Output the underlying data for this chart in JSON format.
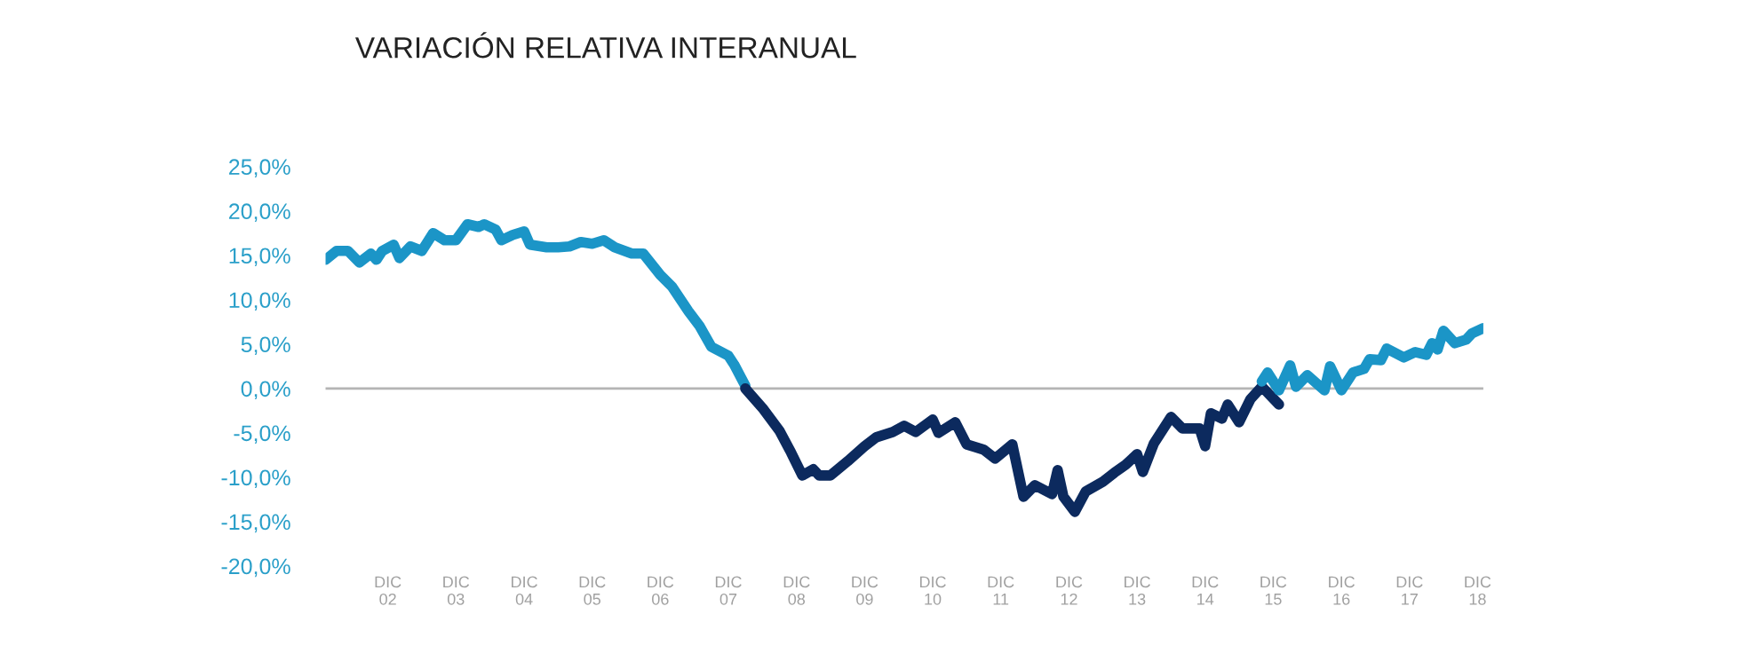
{
  "chart_data": {
    "type": "line",
    "title": "VARIACIÓN RELATIVA INTERANUAL",
    "series": [
      {
        "color": "#1b95c7",
        "x": [
          "2002-01",
          "2002-03",
          "2002-05",
          "2002-07",
          "2002-09",
          "2002-10",
          "2002-11",
          "2003-01",
          "2003-02",
          "2003-04",
          "2003-06",
          "2003-08",
          "2003-10",
          "2003-12",
          "2004-02",
          "2004-04",
          "2004-05",
          "2004-07",
          "2004-08",
          "2004-10",
          "2004-12",
          "2005-01",
          "2005-04",
          "2005-06",
          "2005-08",
          "2005-10",
          "2005-12",
          "2006-02",
          "2006-04",
          "2006-07",
          "2006-09",
          "2006-12",
          "2007-02",
          "2007-05",
          "2007-07",
          "2007-09",
          "2007-12",
          "2008-01",
          "2008-03"
        ],
        "values": [
          14.5,
          15.5,
          15.5,
          14.2,
          15.2,
          14.5,
          15.5,
          16.2,
          14.7,
          16,
          15.5,
          17.5,
          16.7,
          16.7,
          18.5,
          18.2,
          18.5,
          17.9,
          16.7,
          17.3,
          17.7,
          16.2,
          15.9,
          15.9,
          16,
          16.5,
          16.3,
          16.7,
          15.9,
          15.2,
          15.2,
          12.8,
          11.5,
          8.7,
          7,
          4.7,
          3.7,
          2.7,
          0.3
        ]
      },
      {
        "color": "#0c2a5e",
        "x": [
          "2008-03",
          "2008-06",
          "2008-09",
          "2008-11",
          "2009-01",
          "2009-03",
          "2009-04",
          "2009-06",
          "2009-09",
          "2009-12",
          "2010-02",
          "2010-05",
          "2010-07",
          "2010-09",
          "2010-12",
          "2011-01",
          "2011-04",
          "2011-06",
          "2011-09",
          "2011-11",
          "2012-02",
          "2012-04",
          "2012-06",
          "2012-09",
          "2012-10",
          "2012-11",
          "2013-01",
          "2013-03",
          "2013-06",
          "2013-08",
          "2013-10",
          "2013-12",
          "2014-01",
          "2014-03",
          "2014-06",
          "2014-08",
          "2014-11",
          "2014-12",
          "2015-01",
          "2015-03",
          "2015-04",
          "2015-06",
          "2015-08",
          "2015-10",
          "2016-01"
        ],
        "values": [
          0,
          -2.2,
          -4.8,
          -7.2,
          -9.8,
          -9.1,
          -9.8,
          -9.8,
          -8.2,
          -6.5,
          -5.5,
          -4.9,
          -4.2,
          -4.9,
          -3.5,
          -5,
          -3.8,
          -6.3,
          -6.9,
          -7.9,
          -6.3,
          -12.2,
          -10.9,
          -11.9,
          -9.2,
          -12.2,
          -13.9,
          -11.6,
          -10.5,
          -9.5,
          -8.6,
          -7.4,
          -9.4,
          -6.2,
          -3.2,
          -4.5,
          -4.5,
          -6.5,
          -2.8,
          -3.4,
          -1.8,
          -3.8,
          -1.2,
          0.2,
          -1.8
        ]
      },
      {
        "color": "#1b95c7",
        "x": [
          "2015-10",
          "2015-11",
          "2016-01",
          "2016-03",
          "2016-04",
          "2016-06",
          "2016-09",
          "2016-10",
          "2016-12",
          "2017-02",
          "2017-04",
          "2017-05",
          "2017-07",
          "2017-08",
          "2017-11",
          "2018-01",
          "2018-03",
          "2018-04",
          "2018-05",
          "2018-06",
          "2018-08",
          "2018-10",
          "2018-11",
          "2019-01"
        ],
        "values": [
          0.8,
          1.8,
          -0.2,
          2.6,
          0.2,
          1.5,
          -0.2,
          2.5,
          -0.2,
          1.8,
          2.2,
          3.3,
          3.2,
          4.5,
          3.5,
          4.1,
          3.8,
          5.1,
          4.4,
          6.5,
          5.1,
          5.5,
          6.2,
          6.8
        ]
      }
    ],
    "xlim": [
      "2002-01",
      "2019-01"
    ],
    "xticks": [
      {
        "value": "2002-12",
        "label": "DIC\n02"
      },
      {
        "value": "2003-12",
        "label": "DIC\n03"
      },
      {
        "value": "2004-12",
        "label": "DIC\n04"
      },
      {
        "value": "2005-12",
        "label": "DIC\n05"
      },
      {
        "value": "2006-12",
        "label": "DIC\n06"
      },
      {
        "value": "2007-12",
        "label": "DIC\n07"
      },
      {
        "value": "2008-12",
        "label": "DIC\n08"
      },
      {
        "value": "2009-12",
        "label": "DIC\n09"
      },
      {
        "value": "2010-12",
        "label": "DIC\n10"
      },
      {
        "value": "2011-12",
        "label": "DIC\n11"
      },
      {
        "value": "2012-12",
        "label": "DIC\n12"
      },
      {
        "value": "2013-12",
        "label": "DIC\n13"
      },
      {
        "value": "2014-12",
        "label": "DIC\n14"
      },
      {
        "value": "2015-12",
        "label": "DIC\n15"
      },
      {
        "value": "2016-12",
        "label": "DIC\n16"
      },
      {
        "value": "2017-12",
        "label": "DIC\n17"
      },
      {
        "value": "2018-12",
        "label": "DIC\n18"
      }
    ],
    "ylim": [
      -20,
      25
    ],
    "yticks": [
      {
        "value": -20,
        "label": "-20,0%"
      },
      {
        "value": -15,
        "label": "-15,0%"
      },
      {
        "value": -10,
        "label": "-10,0%"
      },
      {
        "value": -5,
        "label": "-5,0%"
      },
      {
        "value": 0,
        "label": "0,0%"
      },
      {
        "value": 5,
        "label": "5,0%"
      },
      {
        "value": 10,
        "label": "10,0%"
      },
      {
        "value": 15,
        "label": "15,0%"
      },
      {
        "value": 20,
        "label": "20,0%"
      },
      {
        "value": 25,
        "label": "25,0%"
      }
    ],
    "ref_lines": [
      {
        "axis": "y",
        "value": 0,
        "color": "#b4b4b4"
      }
    ],
    "grid": false,
    "legend": false,
    "marker": "none",
    "line_style": "solid"
  }
}
